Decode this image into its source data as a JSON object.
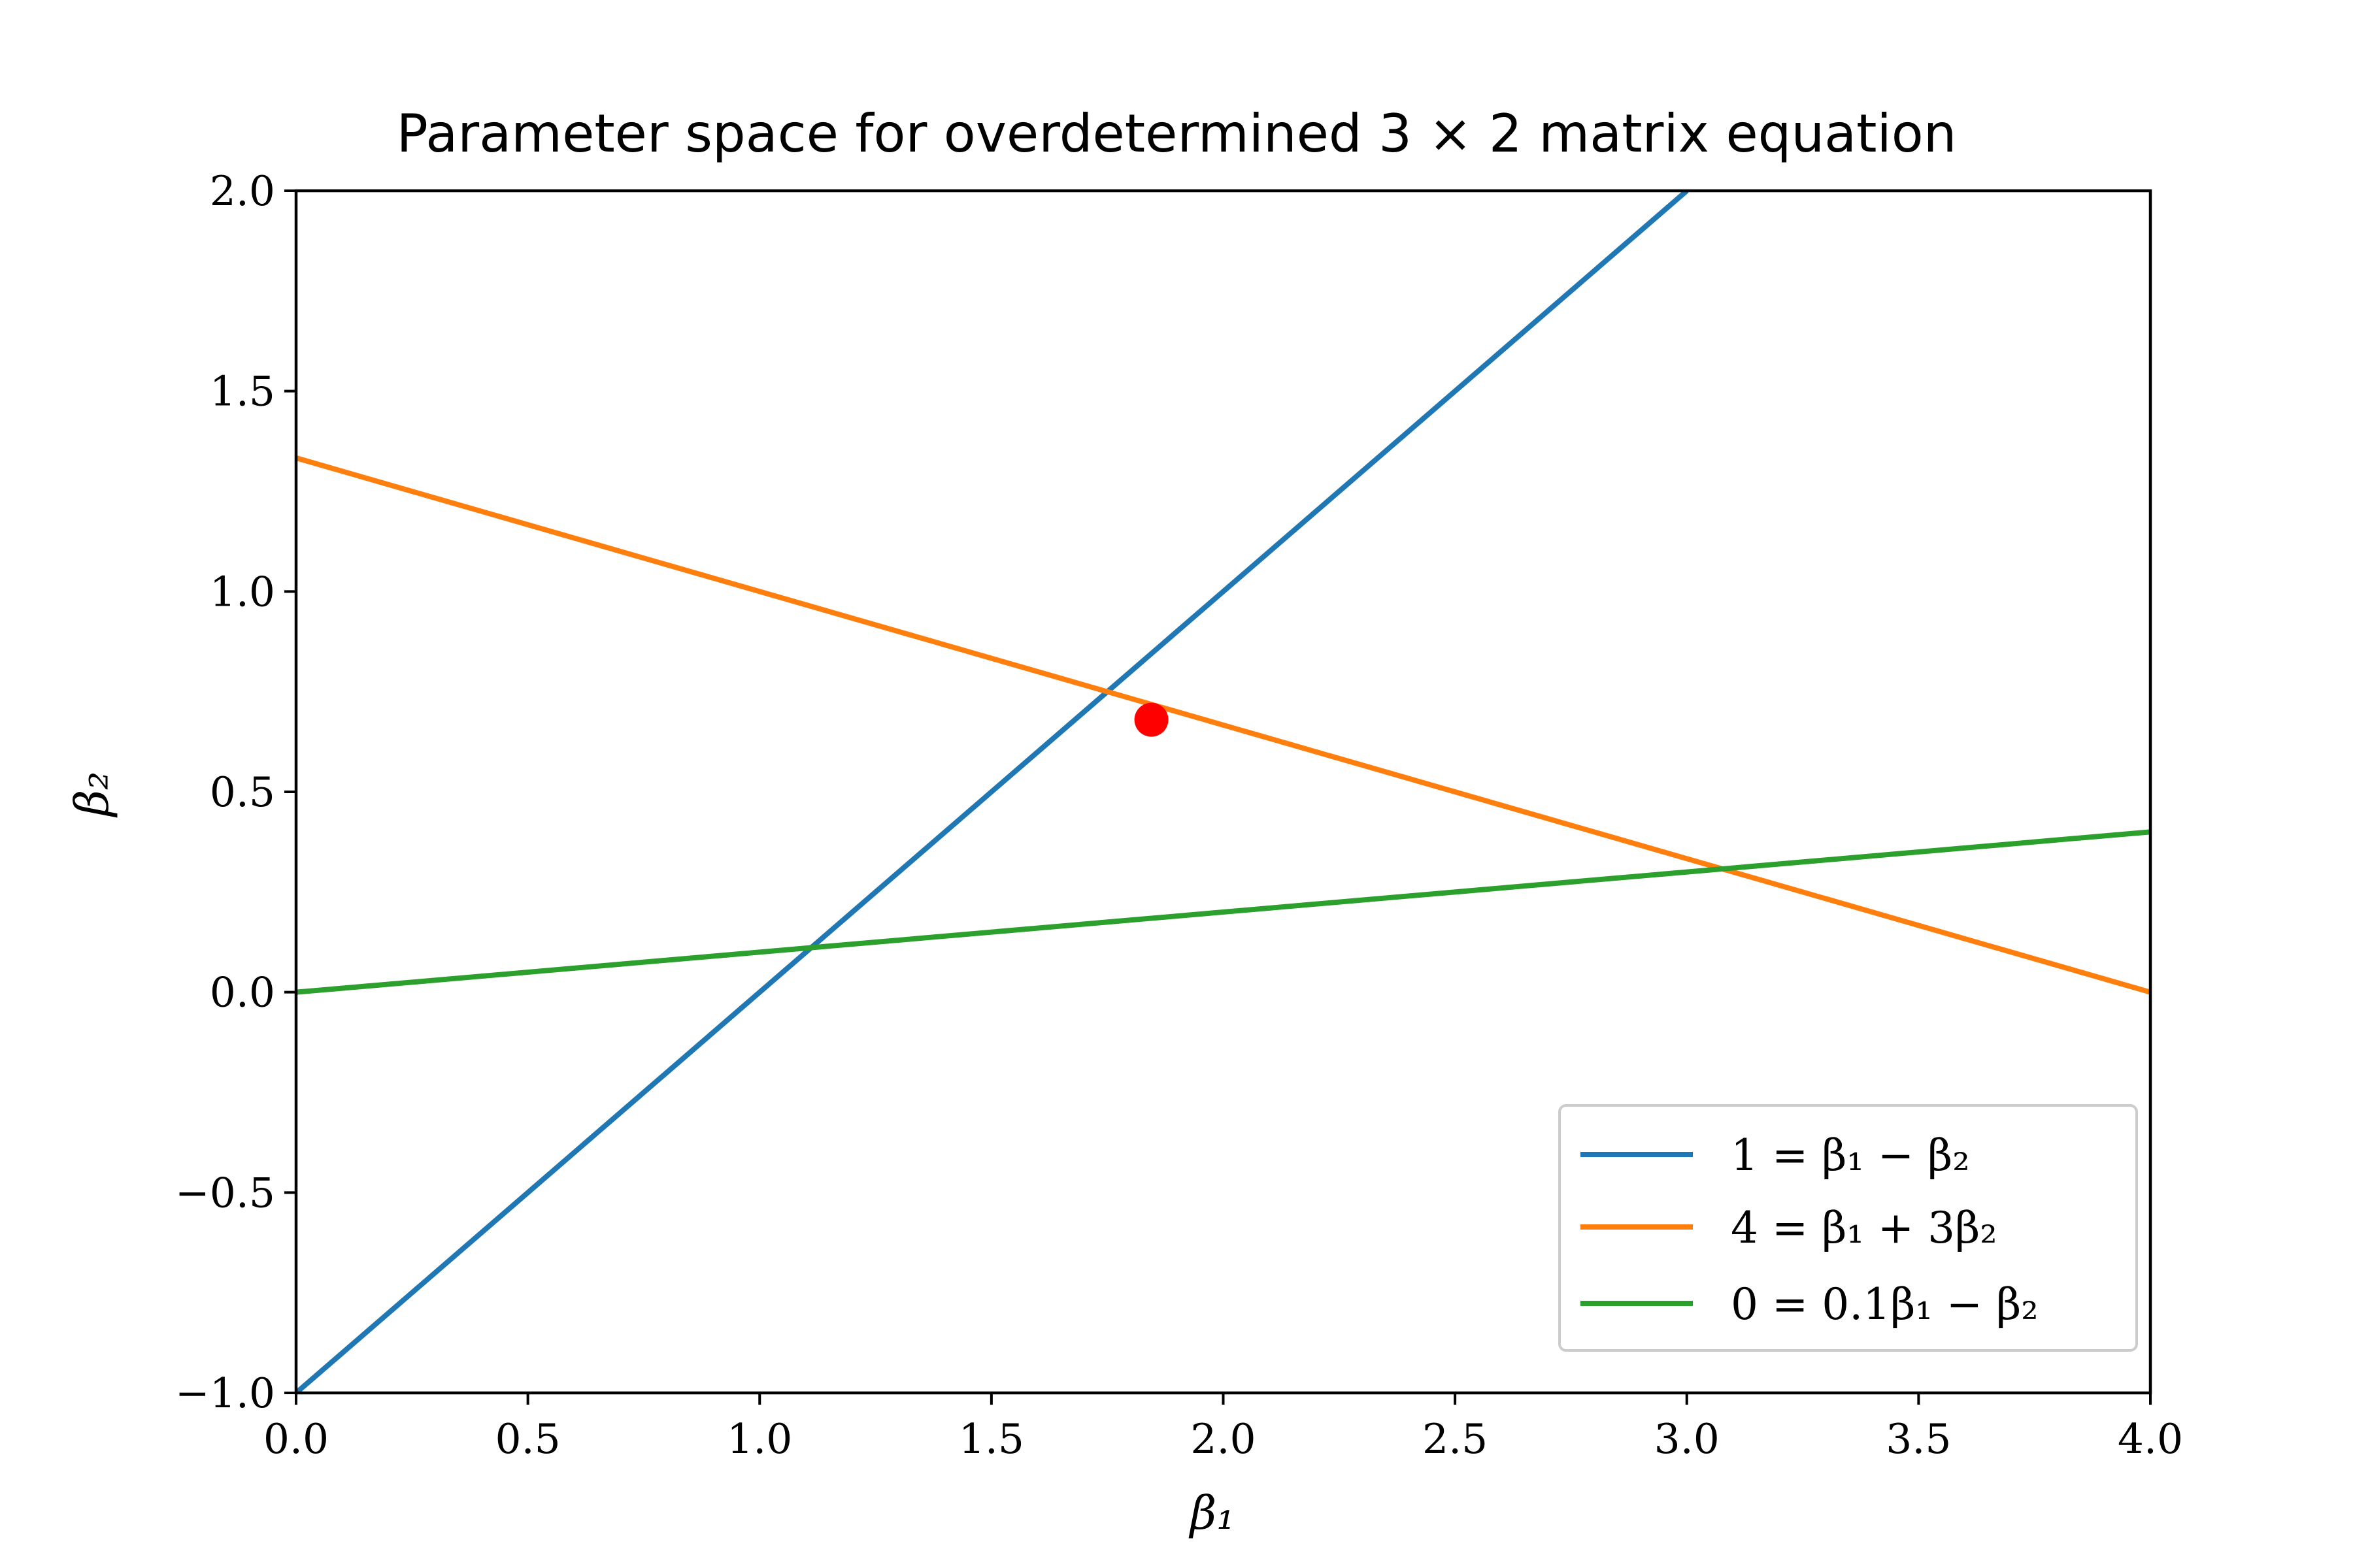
{
  "chart_data": {
    "type": "line",
    "title": "Parameter space for overdetermined 3 × 2 matrix equation",
    "xlabel": "β₁",
    "ylabel": "β₂",
    "xlim": [
      0.0,
      4.0
    ],
    "ylim": [
      -1.0,
      2.0
    ],
    "x_ticks": [
      "0.0",
      "0.5",
      "1.0",
      "1.5",
      "2.0",
      "2.5",
      "3.0",
      "3.5",
      "4.0"
    ],
    "y_ticks": [
      "−1.0",
      "−0.5",
      "0.0",
      "0.5",
      "1.0",
      "1.5",
      "2.0"
    ],
    "grid": false,
    "legend_position": "lower right",
    "series": [
      {
        "name": "1 = β₁ − β₂",
        "color": "#1f77b4",
        "x": [
          0.0,
          3.0
        ],
        "y": [
          -1.0,
          2.0
        ]
      },
      {
        "name": "4 = β₁ + 3β₂",
        "color": "#ff7f0e",
        "x": [
          0.0,
          4.0
        ],
        "y": [
          1.3333,
          0.0
        ]
      },
      {
        "name": "0 = 0.1β₁ − β₂",
        "color": "#2ca02c",
        "x": [
          0.0,
          4.0
        ],
        "y": [
          0.0,
          0.4
        ]
      }
    ],
    "points": [
      {
        "x": 1.845,
        "y": 0.68,
        "color": "#ff0000"
      }
    ]
  }
}
